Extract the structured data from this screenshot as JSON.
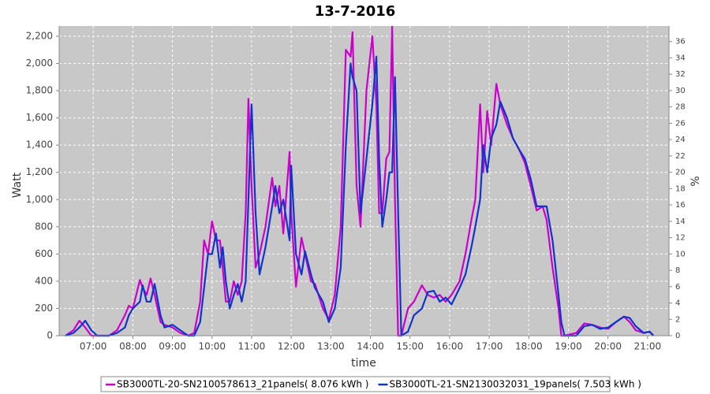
{
  "chart_data": {
    "type": "line",
    "title": "13-7-2016",
    "xlabel": "time",
    "ylabel": "Watt",
    "y2label": "%",
    "x": [
      6.3,
      6.5,
      6.65,
      6.8,
      6.95,
      7.1,
      7.4,
      7.6,
      7.8,
      7.9,
      8.0,
      8.18,
      8.25,
      8.35,
      8.45,
      8.55,
      8.7,
      8.8,
      9.0,
      9.2,
      9.4,
      9.55,
      9.7,
      9.8,
      9.9,
      10.0,
      10.1,
      10.2,
      10.27,
      10.35,
      10.45,
      10.55,
      10.65,
      10.75,
      10.85,
      10.92,
      11.0,
      11.1,
      11.2,
      11.35,
      11.52,
      11.6,
      11.7,
      11.8,
      11.96,
      12.0,
      12.12,
      12.26,
      12.35,
      12.5,
      12.6,
      12.8,
      12.95,
      13.1,
      13.25,
      13.38,
      13.5,
      13.55,
      13.65,
      13.75,
      13.9,
      14.05,
      14.15,
      14.22,
      14.3,
      14.4,
      14.48,
      14.55,
      14.62,
      14.7,
      14.78,
      14.95,
      15.1,
      15.3,
      15.45,
      15.6,
      15.75,
      15.9,
      16.05,
      16.25,
      16.4,
      16.55,
      16.65,
      16.77,
      16.85,
      16.95,
      17.05,
      17.18,
      17.28,
      17.45,
      17.6,
      17.75,
      17.9,
      18.05,
      18.2,
      18.35,
      18.45,
      18.6,
      18.75,
      18.82,
      18.9,
      19.2,
      19.4,
      19.6,
      19.8,
      20.0,
      20.2,
      20.4,
      20.55,
      20.7,
      20.9,
      21.05,
      21.15
    ],
    "series": [
      {
        "name": "SB3000TL-20-SN2100578613_21panels( 8.076 kWh )",
        "color": "#cc00cc",
        "values": [
          0,
          40,
          110,
          60,
          0,
          0,
          0,
          40,
          150,
          220,
          200,
          410,
          350,
          300,
          420,
          300,
          100,
          80,
          60,
          20,
          0,
          20,
          250,
          700,
          600,
          840,
          700,
          700,
          500,
          250,
          250,
          400,
          300,
          400,
          900,
          1740,
          1100,
          500,
          600,
          800,
          1160,
          950,
          1100,
          750,
          1350,
          900,
          360,
          720,
          600,
          400,
          380,
          200,
          120,
          300,
          800,
          2100,
          2050,
          2230,
          1100,
          800,
          1800,
          2200,
          1700,
          900,
          900,
          1300,
          1350,
          2270,
          1000,
          0,
          0,
          200,
          250,
          370,
          300,
          280,
          300,
          250,
          300,
          400,
          600,
          850,
          1000,
          1700,
          1200,
          1650,
          1400,
          1850,
          1700,
          1550,
          1450,
          1370,
          1270,
          1100,
          920,
          950,
          850,
          500,
          200,
          0,
          0,
          20,
          90,
          80,
          60,
          50,
          100,
          140,
          100,
          40,
          20,
          30,
          0
        ]
      },
      {
        "name": "SB3000TL-21-SN2130032031_19panels( 7.503 kWh )",
        "color": "#1133cc",
        "values": [
          0,
          20,
          60,
          110,
          40,
          0,
          0,
          20,
          60,
          150,
          200,
          250,
          370,
          250,
          250,
          380,
          150,
          60,
          80,
          40,
          0,
          0,
          100,
          350,
          600,
          600,
          750,
          500,
          650,
          400,
          200,
          300,
          380,
          250,
          400,
          1000,
          1700,
          900,
          450,
          650,
          950,
          1100,
          900,
          1000,
          700,
          1250,
          600,
          450,
          620,
          450,
          350,
          250,
          100,
          200,
          500,
          1400,
          2000,
          1900,
          1800,
          900,
          1300,
          1700,
          2050,
          1300,
          800,
          1000,
          1200,
          1200,
          1900,
          900,
          0,
          30,
          150,
          200,
          320,
          330,
          250,
          280,
          230,
          350,
          450,
          650,
          800,
          1000,
          1400,
          1200,
          1450,
          1550,
          1720,
          1600,
          1450,
          1370,
          1300,
          1150,
          950,
          950,
          950,
          700,
          300,
          100,
          0,
          0,
          70,
          80,
          50,
          60,
          100,
          140,
          130,
          70,
          20,
          30,
          0
        ]
      }
    ],
    "xlim": [
      6.14,
      21.54
    ],
    "xticks": [
      {
        "value": 7,
        "label": "07:00"
      },
      {
        "value": 8,
        "label": "08:00"
      },
      {
        "value": 9,
        "label": "09:00"
      },
      {
        "value": 10,
        "label": "10:00"
      },
      {
        "value": 11,
        "label": "11:00"
      },
      {
        "value": 12,
        "label": "12:00"
      },
      {
        "value": 13,
        "label": "13:00"
      },
      {
        "value": 14,
        "label": "14:00"
      },
      {
        "value": 15,
        "label": "15:00"
      },
      {
        "value": 16,
        "label": "16:00"
      },
      {
        "value": 17,
        "label": "17:00"
      },
      {
        "value": 18,
        "label": "18:00"
      },
      {
        "value": 19,
        "label": "19:00"
      },
      {
        "value": 20,
        "label": "20:00"
      },
      {
        "value": 21,
        "label": "21:00"
      }
    ],
    "ylim": [
      0,
      2275
    ],
    "yticks": [
      0,
      200,
      400,
      600,
      800,
      {
        "value": 1000,
        "label": "1,000"
      },
      {
        "value": 1200,
        "label": "1,200"
      },
      {
        "value": 1400,
        "label": "1,400"
      },
      {
        "value": 1600,
        "label": "1,600"
      },
      {
        "value": 1800,
        "label": "1,800"
      },
      {
        "value": 2000,
        "label": "2,000"
      },
      {
        "value": 2200,
        "label": "2,200"
      }
    ],
    "y2lim": [
      0,
      37.9
    ],
    "y2ticks": [
      0,
      2,
      4,
      6,
      8,
      10,
      12,
      14,
      16,
      18,
      20,
      22,
      24,
      26,
      28,
      30,
      32,
      34,
      36
    ],
    "grid": true,
    "legend": "bottom"
  }
}
